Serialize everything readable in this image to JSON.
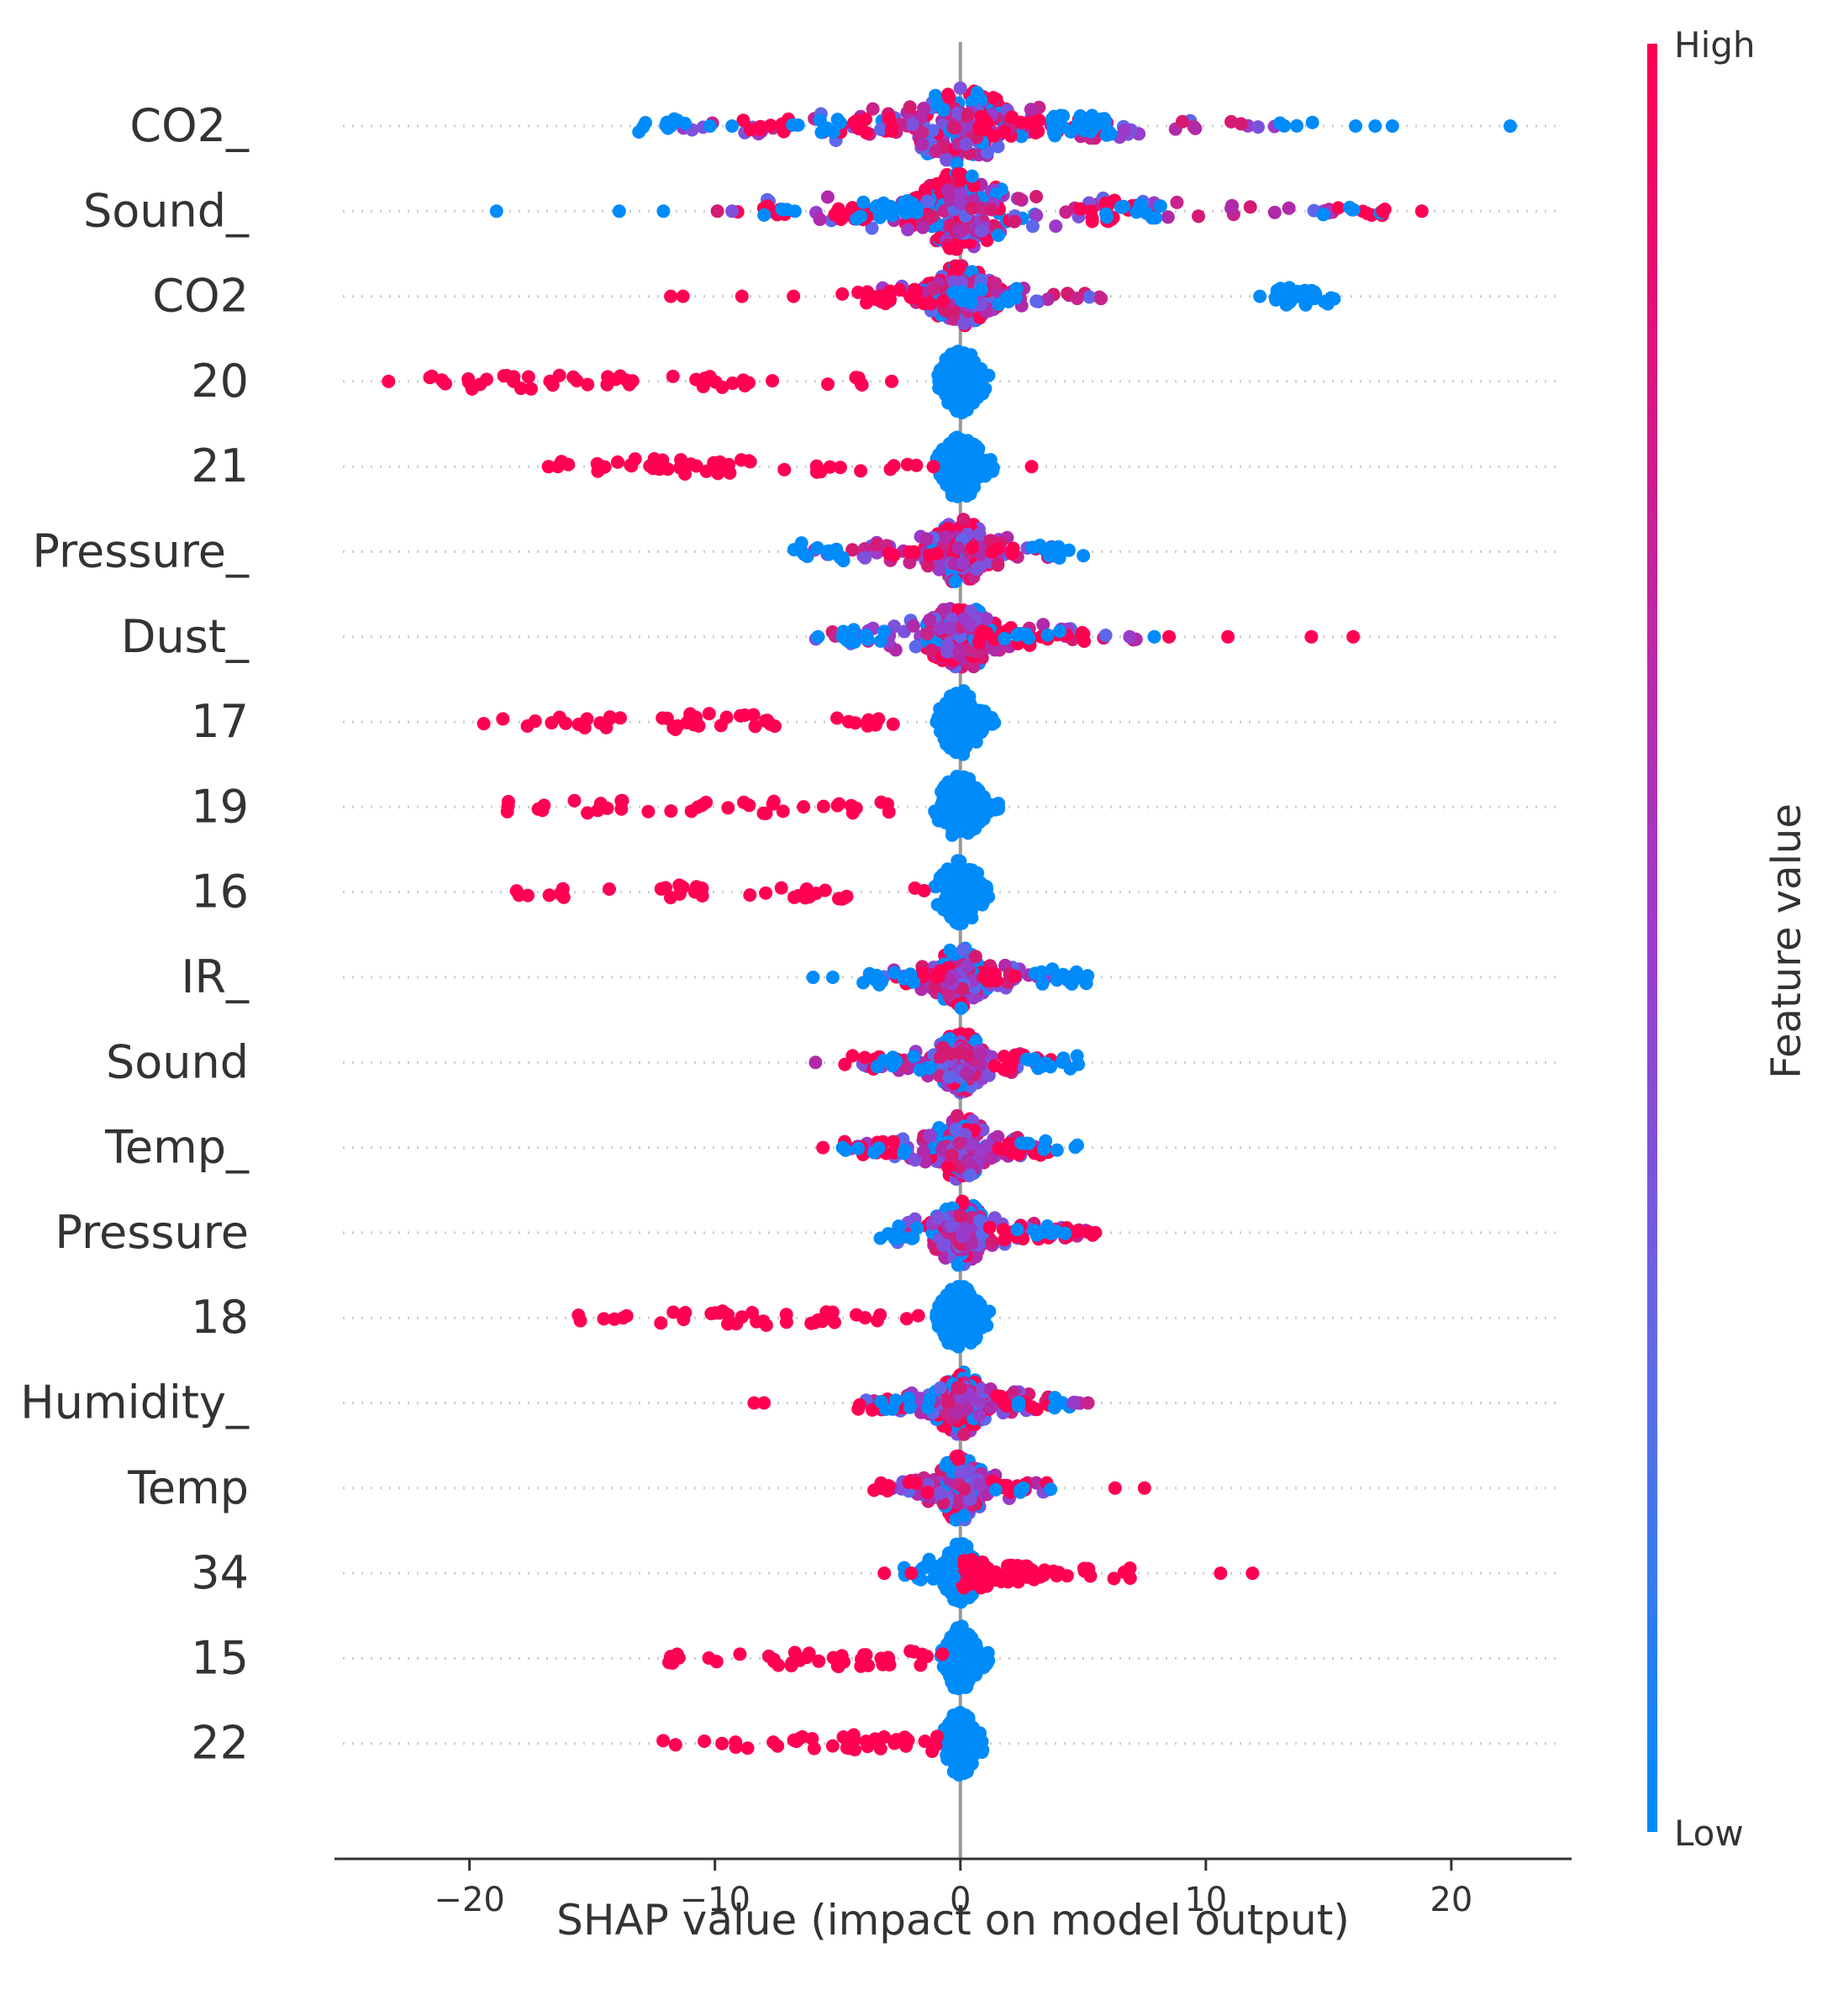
{
  "chart_data": {
    "type": "scatter",
    "subtype": "shap-beeswarm",
    "xlabel": "SHAP value (impact on model output)",
    "xlim": [
      -25.5,
      24.9
    ],
    "xticks": [
      {
        "value": -20,
        "label": "−20"
      },
      {
        "value": -10,
        "label": "−10"
      },
      {
        "value": 0,
        "label": "0"
      },
      {
        "value": 10,
        "label": "10"
      },
      {
        "value": 20,
        "label": "20"
      }
    ],
    "colorbar": {
      "title": "Feature value",
      "high_label": "High",
      "low_label": "Low",
      "high_color": "#ff0052",
      "low_color": "#008bfb"
    },
    "features": [
      {
        "name": "CO2_",
        "spread_l": 12,
        "spread_r": 14,
        "core_w": 2.8,
        "h": 1.0,
        "mode": "mixed",
        "red": [
          [
            -8,
            10
          ],
          [
            -4,
            12
          ],
          [
            2,
            18
          ],
          [
            4.5,
            8
          ]
        ],
        "blue": [
          [
            -12,
            9
          ],
          [
            -6,
            8
          ],
          [
            5,
            32
          ],
          [
            14,
            4
          ]
        ],
        "outliers": [
          [
            -11.8,
            "b"
          ],
          [
            -10.2,
            "b"
          ],
          [
            -9.3,
            "b"
          ],
          [
            16.1,
            "b"
          ],
          [
            16.9,
            "b"
          ],
          [
            17.6,
            "b"
          ],
          [
            22.4,
            "b"
          ]
        ]
      },
      {
        "name": "Sound_",
        "spread_l": 8,
        "spread_r": 16,
        "core_w": 2.6,
        "h": 1.0,
        "mode": "mixed",
        "red": [
          [
            -8,
            6
          ],
          [
            -4,
            12
          ],
          [
            6,
            18
          ],
          [
            16,
            6
          ]
        ],
        "blue": [
          [
            -8,
            4
          ],
          [
            -3,
            20
          ],
          [
            7,
            12
          ],
          [
            16,
            5
          ]
        ],
        "outliers": [
          [
            -18.9,
            "b"
          ],
          [
            -13.9,
            "b"
          ],
          [
            -12.1,
            "b"
          ],
          [
            -9.9,
            "p"
          ],
          [
            -9.3,
            "p"
          ],
          [
            17.2,
            "r"
          ],
          [
            18.8,
            "r"
          ]
        ]
      },
      {
        "name": "CO2",
        "spread_l": 4,
        "spread_r": 6,
        "core_w": 1.6,
        "h": 0.8,
        "mode": "mixed",
        "red": [
          [
            -4,
            8
          ],
          [
            -2,
            10
          ]
        ],
        "blue": [
          [
            1,
            15
          ],
          [
            14,
            28
          ]
        ],
        "outliers": [
          [
            -11.8,
            "r"
          ],
          [
            -11.3,
            "r"
          ],
          [
            -8.9,
            "r"
          ],
          [
            -6.8,
            "r"
          ],
          [
            -3.8,
            "r"
          ],
          [
            -3.2,
            "r"
          ],
          [
            13.8,
            "b"
          ],
          [
            13.2,
            "b"
          ],
          [
            12.2,
            "b"
          ]
        ]
      },
      {
        "name": "20",
        "spread_l": 0.8,
        "spread_r": 1.4,
        "core_w": 0.9,
        "h": 0.85,
        "mode": "blue-core",
        "red": [
          [
            -20.5,
            10
          ],
          [
            -17.5,
            10
          ],
          [
            -14.5,
            10
          ],
          [
            -11,
            8
          ],
          [
            -8,
            5
          ],
          [
            -5,
            5
          ]
        ],
        "blue": [],
        "outliers": [
          [
            -23.3,
            "r"
          ],
          [
            -2.8,
            "r"
          ]
        ]
      },
      {
        "name": "21",
        "spread_l": 0.8,
        "spread_r": 1.4,
        "core_w": 0.9,
        "h": 0.85,
        "mode": "blue-core",
        "red": [
          [
            -16,
            4
          ],
          [
            -14,
            6
          ],
          [
            -12,
            12
          ],
          [
            -9.5,
            10
          ],
          [
            -6,
            6
          ],
          [
            -3,
            5
          ]
        ],
        "blue": [],
        "outliers": [
          [
            -16.4,
            "r"
          ],
          [
            -1.1,
            "r"
          ],
          [
            2.9,
            "r"
          ]
        ]
      },
      {
        "name": "Pressure_",
        "spread_l": 6,
        "spread_r": 4,
        "core_w": 1.3,
        "h": 0.85,
        "mode": "mixed",
        "red": [
          [
            -2,
            6
          ],
          [
            1,
            6
          ]
        ],
        "blue": [
          [
            -6,
            14
          ],
          [
            4,
            10
          ]
        ],
        "outliers": []
      },
      {
        "name": "Dust_",
        "spread_l": 6,
        "spread_r": 8,
        "core_w": 1.6,
        "h": 0.9,
        "mode": "mixed",
        "red": [
          [
            2,
            14
          ],
          [
            4.5,
            6
          ]
        ],
        "blue": [
          [
            -4,
            10
          ],
          [
            3,
            8
          ]
        ],
        "outliers": [
          [
            -5.8,
            "b"
          ],
          [
            -4.8,
            "b"
          ],
          [
            6.9,
            "p"
          ],
          [
            7.9,
            "b"
          ],
          [
            8.5,
            "r"
          ],
          [
            10.9,
            "r"
          ],
          [
            14.3,
            "r"
          ],
          [
            16.0,
            "r"
          ]
        ]
      },
      {
        "name": "17",
        "spread_l": 0.8,
        "spread_r": 1.4,
        "core_w": 0.9,
        "h": 0.85,
        "mode": "blue-core",
        "red": [
          [
            -18.5,
            3
          ],
          [
            -16.8,
            4
          ],
          [
            -14.5,
            8
          ],
          [
            -11.5,
            12
          ],
          [
            -8.5,
            10
          ],
          [
            -5,
            6
          ],
          [
            -3.2,
            3
          ]
        ],
        "blue": [],
        "outliers": []
      },
      {
        "name": "19",
        "spread_l": 0.8,
        "spread_r": 1.6,
        "core_w": 0.9,
        "h": 0.85,
        "mode": "blue-core",
        "red": [
          [
            -17.5,
            6
          ],
          [
            -14.5,
            8
          ],
          [
            -11.5,
            6
          ],
          [
            -8.5,
            8
          ],
          [
            -5.5,
            6
          ],
          [
            -3.5,
            4
          ]
        ],
        "blue": [],
        "outliers": []
      },
      {
        "name": "16",
        "spread_l": 0.8,
        "spread_r": 1.2,
        "core_w": 0.9,
        "h": 0.85,
        "mode": "blue-core",
        "red": [
          [
            -17.2,
            5
          ],
          [
            -15.5,
            3
          ],
          [
            -11,
            12
          ],
          [
            -7.5,
            6
          ],
          [
            -5,
            8
          ],
          [
            -2.5,
            2
          ]
        ],
        "blue": [],
        "outliers": []
      },
      {
        "name": "IR_",
        "spread_l": 3.5,
        "spread_r": 5,
        "core_w": 1.2,
        "h": 0.8,
        "mode": "mixed",
        "red": [
          [
            -1.5,
            8
          ],
          [
            1,
            8
          ]
        ],
        "blue": [
          [
            -3,
            10
          ],
          [
            4,
            12
          ]
        ],
        "outliers": [
          [
            -6.0,
            "b"
          ],
          [
            -5.2,
            "b"
          ]
        ]
      },
      {
        "name": "Sound",
        "spread_l": 4.5,
        "spread_r": 4.5,
        "core_w": 1.1,
        "h": 0.8,
        "mode": "mixed",
        "red": [
          [
            -3.5,
            8
          ],
          [
            2.5,
            10
          ]
        ],
        "blue": [
          [
            -2.5,
            10
          ],
          [
            4,
            12
          ]
        ],
        "outliers": [
          [
            -5.9,
            "p"
          ]
        ]
      },
      {
        "name": "Temp_",
        "spread_l": 4.5,
        "spread_r": 4,
        "core_w": 1.3,
        "h": 0.85,
        "mode": "mixed",
        "red": [
          [
            -3.5,
            12
          ],
          [
            2.5,
            10
          ]
        ],
        "blue": [
          [
            -3.5,
            6
          ],
          [
            3.5,
            8
          ]
        ],
        "outliers": [
          [
            -5.6,
            "r"
          ],
          [
            -4.8,
            "b"
          ]
        ]
      },
      {
        "name": "Pressure",
        "spread_l": 3,
        "spread_r": 5.5,
        "core_w": 1.2,
        "h": 0.85,
        "mode": "mixed",
        "red": [
          [
            2,
            10
          ],
          [
            4.5,
            8
          ]
        ],
        "blue": [
          [
            -2.5,
            8
          ],
          [
            3,
            8
          ]
        ],
        "outliers": [
          [
            5.5,
            "r"
          ]
        ]
      },
      {
        "name": "18",
        "spread_l": 0.8,
        "spread_r": 1.2,
        "core_w": 0.9,
        "h": 0.85,
        "mode": "blue-core",
        "red": [
          [
            -14.5,
            4
          ],
          [
            -12.5,
            6
          ],
          [
            -9,
            12
          ],
          [
            -6,
            10
          ],
          [
            -3,
            6
          ]
        ],
        "blue": [],
        "outliers": []
      },
      {
        "name": "Humidity_",
        "spread_l": 4,
        "spread_r": 5,
        "core_w": 1.2,
        "h": 0.85,
        "mode": "mixed",
        "red": [
          [
            -3.5,
            10
          ],
          [
            2.5,
            10
          ]
        ],
        "blue": [
          [
            -2,
            8
          ],
          [
            3.5,
            6
          ]
        ],
        "outliers": [
          [
            -8.4,
            "r"
          ],
          [
            -8.0,
            "r"
          ],
          [
            4.6,
            "p"
          ],
          [
            5.2,
            "p"
          ]
        ]
      },
      {
        "name": "Temp",
        "spread_l": 2.8,
        "spread_r": 4,
        "core_w": 1.2,
        "h": 0.85,
        "mode": "mixed",
        "red": [
          [
            -2.5,
            8
          ],
          [
            2.5,
            10
          ]
        ],
        "blue": [
          [
            2.5,
            6
          ]
        ],
        "outliers": [
          [
            6.3,
            "r"
          ],
          [
            7.5,
            "r"
          ]
        ]
      },
      {
        "name": "34",
        "spread_l": 1.5,
        "spread_r": 4,
        "core_w": 0.7,
        "h": 0.8,
        "mode": "blue-core-red-right",
        "red": [
          [
            1.5,
            20
          ],
          [
            4,
            10
          ],
          [
            6,
            6
          ]
        ],
        "blue": [
          [
            -1.5,
            10
          ]
        ],
        "outliers": [
          [
            -3.1,
            "r"
          ],
          [
            -2.0,
            "r"
          ],
          [
            10.6,
            "r"
          ],
          [
            11.9,
            "r"
          ]
        ]
      },
      {
        "name": "15",
        "spread_l": 0.8,
        "spread_r": 1.2,
        "core_w": 0.7,
        "h": 0.85,
        "mode": "blue-core",
        "red": [
          [
            -12,
            3
          ],
          [
            -10.5,
            4
          ],
          [
            -8.5,
            3
          ],
          [
            -6.5,
            10
          ],
          [
            -4,
            12
          ],
          [
            -2,
            10
          ]
        ],
        "blue": [],
        "outliers": []
      },
      {
        "name": "22",
        "spread_l": 0.8,
        "spread_r": 1.0,
        "core_w": 0.7,
        "h": 0.85,
        "mode": "blue-core",
        "red": [
          [
            -11,
            3
          ],
          [
            -9.5,
            4
          ],
          [
            -6.5,
            8
          ],
          [
            -4,
            14
          ],
          [
            -2,
            12
          ]
        ],
        "blue": [],
        "outliers": []
      }
    ]
  }
}
